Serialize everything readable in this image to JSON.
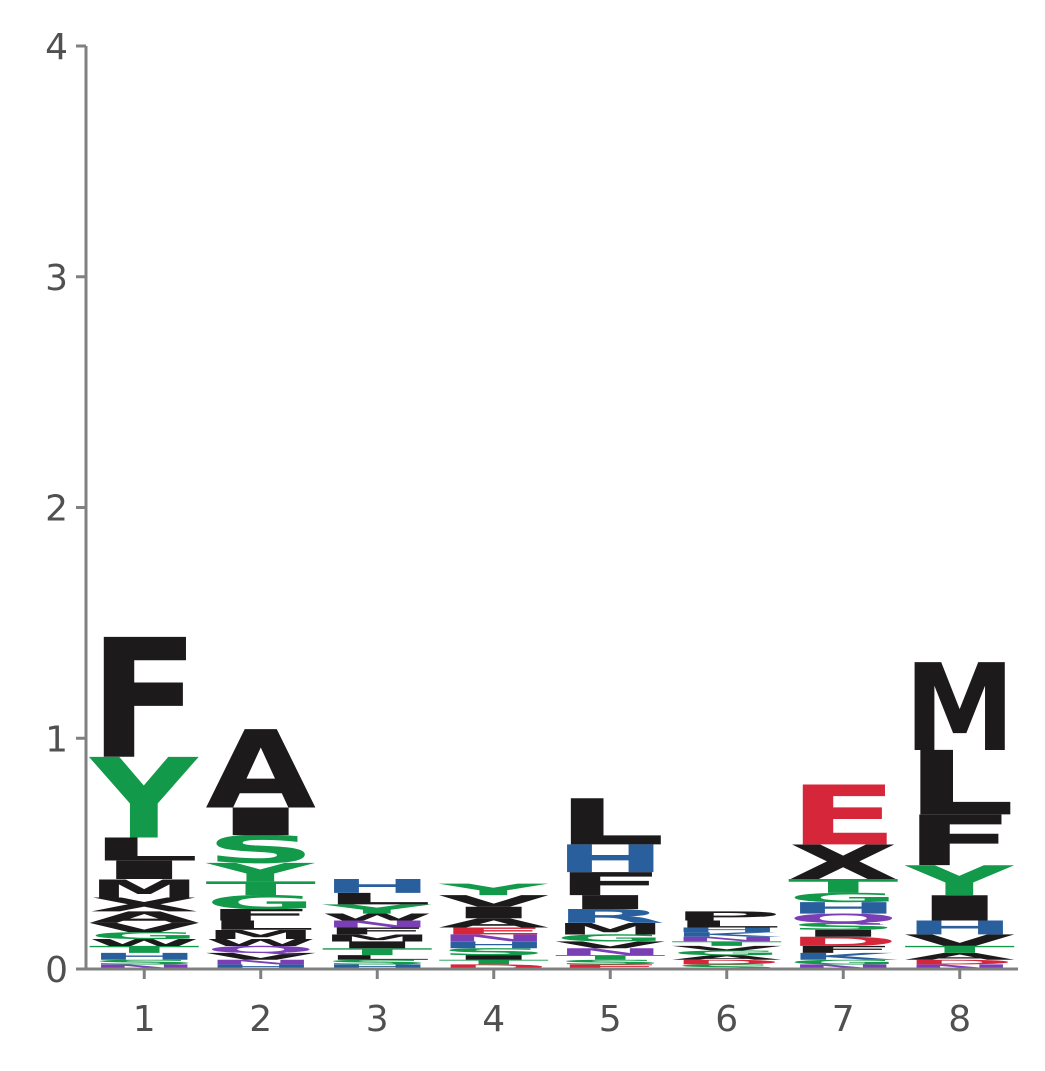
{
  "chart_data": {
    "type": "sequence-logo",
    "title": "",
    "xlabel": "",
    "ylabel": "",
    "ylim": [
      0,
      4
    ],
    "yticks": [
      0,
      1,
      2,
      3,
      4
    ],
    "ytick_labels": [
      "0",
      "1",
      "2",
      "3",
      "4"
    ],
    "positions": [
      1,
      2,
      3,
      4,
      5,
      6,
      7,
      8
    ],
    "xtick_labels": [
      "1",
      "2",
      "3",
      "4",
      "5",
      "6",
      "7",
      "8"
    ],
    "grid": false,
    "legend": "none",
    "colors": {
      "hydrophobic": "#1d1a1c",
      "polar": "#12994a",
      "basic": "#2a5f9e",
      "acidic": "#d6263a",
      "amide": "#7b3fb5",
      "axis": "#808080",
      "tick_text": "#505050"
    },
    "color_groups": {
      "A": "hydrophobic",
      "C": "hydrophobic",
      "F": "hydrophobic",
      "I": "hydrophobic",
      "L": "hydrophobic",
      "M": "hydrophobic",
      "P": "hydrophobic",
      "V": "hydrophobic",
      "W": "hydrophobic",
      "G": "polar",
      "S": "polar",
      "T": "polar",
      "Y": "polar",
      "H": "basic",
      "K": "basic",
      "R": "basic",
      "D": "acidic",
      "E": "acidic",
      "N": "amide",
      "Q": "amide"
    },
    "stacks": [
      {
        "position": 1,
        "letters": [
          {
            "letter": "N",
            "height": 0.02
          },
          {
            "letter": "S",
            "height": 0.02
          },
          {
            "letter": "H",
            "height": 0.03
          },
          {
            "letter": "T",
            "height": 0.03
          },
          {
            "letter": "W",
            "height": 0.03
          },
          {
            "letter": "G",
            "height": 0.03
          },
          {
            "letter": "V",
            "height": 0.04
          },
          {
            "letter": "A",
            "height": 0.05
          },
          {
            "letter": "X",
            "height": 0.06
          },
          {
            "letter": "M",
            "height": 0.08
          },
          {
            "letter": "I",
            "height": 0.08
          },
          {
            "letter": "L",
            "height": 0.1
          },
          {
            "letter": "Y",
            "height": 0.35
          },
          {
            "letter": "F",
            "height": 0.52
          }
        ]
      },
      {
        "position": 2,
        "letters": [
          {
            "letter": "H",
            "height": 0.02
          },
          {
            "letter": "N",
            "height": 0.02
          },
          {
            "letter": "V",
            "height": 0.03
          },
          {
            "letter": "Q",
            "height": 0.03
          },
          {
            "letter": "W",
            "height": 0.03
          },
          {
            "letter": "M",
            "height": 0.04
          },
          {
            "letter": "L",
            "height": 0.04
          },
          {
            "letter": "F",
            "height": 0.05
          },
          {
            "letter": "G",
            "height": 0.06
          },
          {
            "letter": "T",
            "height": 0.06
          },
          {
            "letter": "Y",
            "height": 0.08
          },
          {
            "letter": "S",
            "height": 0.12
          },
          {
            "letter": "I",
            "height": 0.12
          },
          {
            "letter": "A",
            "height": 0.34
          }
        ]
      },
      {
        "position": 3,
        "letters": [
          {
            "letter": "H",
            "height": 0.02
          },
          {
            "letter": "S",
            "height": 0.02
          },
          {
            "letter": "L",
            "height": 0.02
          },
          {
            "letter": "T",
            "height": 0.03
          },
          {
            "letter": "I",
            "height": 0.03
          },
          {
            "letter": "M",
            "height": 0.03
          },
          {
            "letter": "F",
            "height": 0.03
          },
          {
            "letter": "N",
            "height": 0.03
          },
          {
            "letter": "W",
            "height": 0.03
          },
          {
            "letter": "Y",
            "height": 0.04
          },
          {
            "letter": "L",
            "height": 0.05
          },
          {
            "letter": "H",
            "height": 0.06
          }
        ]
      },
      {
        "position": 4,
        "letters": [
          {
            "letter": "D",
            "height": 0.02
          },
          {
            "letter": "T",
            "height": 0.02
          },
          {
            "letter": "I",
            "height": 0.02
          },
          {
            "letter": "S",
            "height": 0.03
          },
          {
            "letter": "H",
            "height": 0.03
          },
          {
            "letter": "N",
            "height": 0.03
          },
          {
            "letter": "E",
            "height": 0.03
          },
          {
            "letter": "A",
            "height": 0.04
          },
          {
            "letter": "I",
            "height": 0.05
          },
          {
            "letter": "V",
            "height": 0.05
          },
          {
            "letter": "Y",
            "height": 0.05
          }
        ]
      },
      {
        "position": 5,
        "letters": [
          {
            "letter": "E",
            "height": 0.02
          },
          {
            "letter": "S",
            "height": 0.02
          },
          {
            "letter": "T",
            "height": 0.02
          },
          {
            "letter": "N",
            "height": 0.03
          },
          {
            "letter": "V",
            "height": 0.03
          },
          {
            "letter": "G",
            "height": 0.03
          },
          {
            "letter": "M",
            "height": 0.05
          },
          {
            "letter": "R",
            "height": 0.06
          },
          {
            "letter": "I",
            "height": 0.06
          },
          {
            "letter": "F",
            "height": 0.1
          },
          {
            "letter": "H",
            "height": 0.12
          },
          {
            "letter": "L",
            "height": 0.2
          }
        ]
      },
      {
        "position": 6,
        "letters": [
          {
            "letter": "S",
            "height": 0.02
          },
          {
            "letter": "D",
            "height": 0.02
          },
          {
            "letter": "A",
            "height": 0.02
          },
          {
            "letter": "G",
            "height": 0.02
          },
          {
            "letter": "V",
            "height": 0.02
          },
          {
            "letter": "T",
            "height": 0.02
          },
          {
            "letter": "N",
            "height": 0.02
          },
          {
            "letter": "K",
            "height": 0.02
          },
          {
            "letter": "H",
            "height": 0.02
          },
          {
            "letter": "L",
            "height": 0.03
          },
          {
            "letter": "P",
            "height": 0.04
          }
        ]
      },
      {
        "position": 7,
        "letters": [
          {
            "letter": "N",
            "height": 0.02
          },
          {
            "letter": "G",
            "height": 0.02
          },
          {
            "letter": "K",
            "height": 0.03
          },
          {
            "letter": "F",
            "height": 0.03
          },
          {
            "letter": "D",
            "height": 0.04
          },
          {
            "letter": "I",
            "height": 0.03
          },
          {
            "letter": "S",
            "height": 0.03
          },
          {
            "letter": "Q",
            "height": 0.04
          },
          {
            "letter": "H",
            "height": 0.05
          },
          {
            "letter": "G",
            "height": 0.04
          },
          {
            "letter": "T",
            "height": 0.06
          },
          {
            "letter": "X",
            "height": 0.15
          },
          {
            "letter": "E",
            "height": 0.26
          }
        ]
      },
      {
        "position": 8,
        "letters": [
          {
            "letter": "N",
            "height": 0.02
          },
          {
            "letter": "D",
            "height": 0.02
          },
          {
            "letter": "A",
            "height": 0.03
          },
          {
            "letter": "T",
            "height": 0.03
          },
          {
            "letter": "V",
            "height": 0.05
          },
          {
            "letter": "H",
            "height": 0.06
          },
          {
            "letter": "I",
            "height": 0.11
          },
          {
            "letter": "Y",
            "height": 0.13
          },
          {
            "letter": "F",
            "height": 0.22
          },
          {
            "letter": "L",
            "height": 0.28
          },
          {
            "letter": "M",
            "height": 0.38
          }
        ]
      }
    ]
  }
}
